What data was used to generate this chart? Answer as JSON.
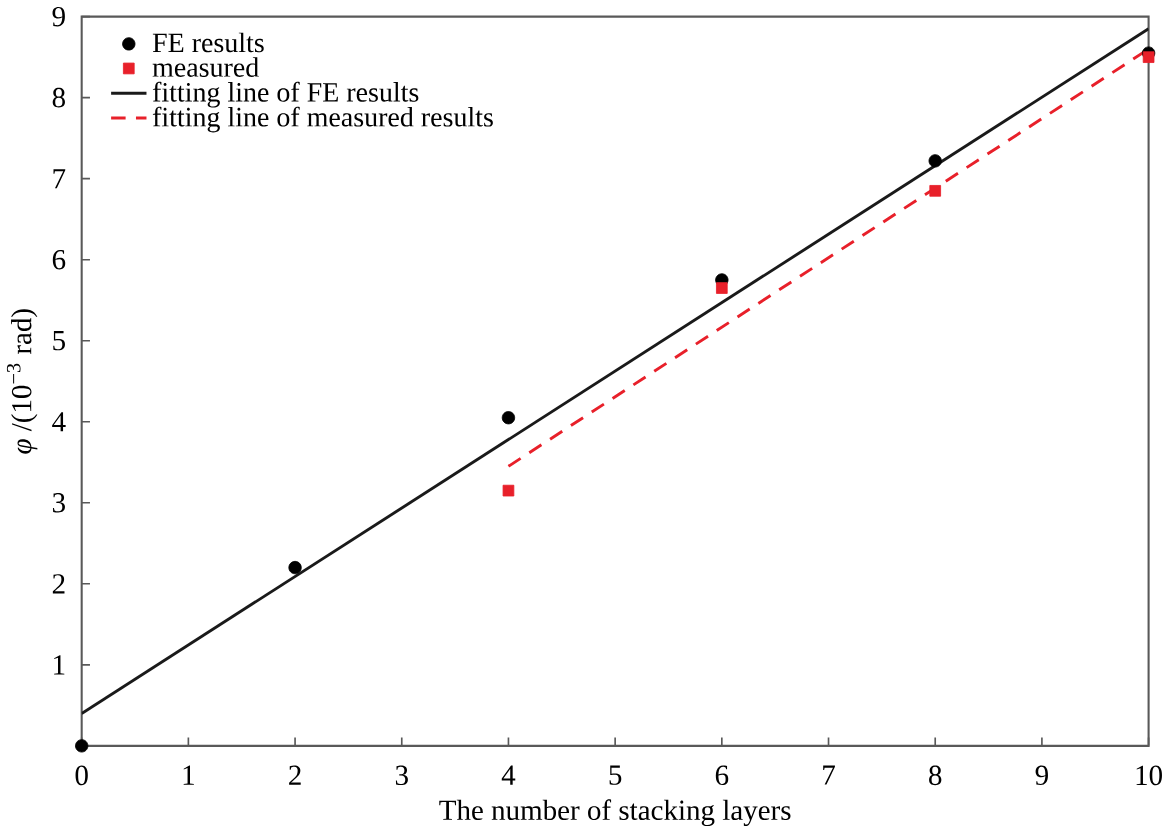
{
  "chart_data": {
    "type": "scatter",
    "xlabel": "The number of stacking layers",
    "ylabel": "*φ* /(10$^{−3}$ rad)",
    "xlim": [
      0,
      10
    ],
    "ylim": [
      0,
      9
    ],
    "xticks": [
      0,
      1,
      2,
      3,
      4,
      5,
      6,
      7,
      8,
      9,
      10
    ],
    "yticks": [
      1,
      2,
      3,
      4,
      5,
      6,
      7,
      8,
      9
    ],
    "legend": "top left",
    "grid": false,
    "series": [
      {
        "name": "FE results",
        "marker": "circle",
        "color": "#000000",
        "x": [
          0,
          2,
          4,
          6,
          8,
          10
        ],
        "values": [
          0,
          2.2,
          4.05,
          5.75,
          7.22,
          8.55
        ]
      },
      {
        "name": "measured",
        "marker": "square",
        "color": "#e8202a",
        "x": [
          4,
          6,
          8,
          10
        ],
        "values": [
          3.15,
          5.65,
          6.85,
          8.5
        ]
      },
      {
        "name": "fitting line of FE results",
        "type": "line",
        "line_style": "solid",
        "marker": "none",
        "color": "#1a1a1a",
        "x": [
          0,
          10
        ],
        "values": [
          0.4,
          8.85
        ]
      },
      {
        "name": "fitting line of measured results",
        "type": "line",
        "line_style": "dashed",
        "marker": "none",
        "color": "#e8202a",
        "x": [
          4,
          10
        ],
        "values": [
          3.45,
          8.6
        ]
      }
    ]
  }
}
